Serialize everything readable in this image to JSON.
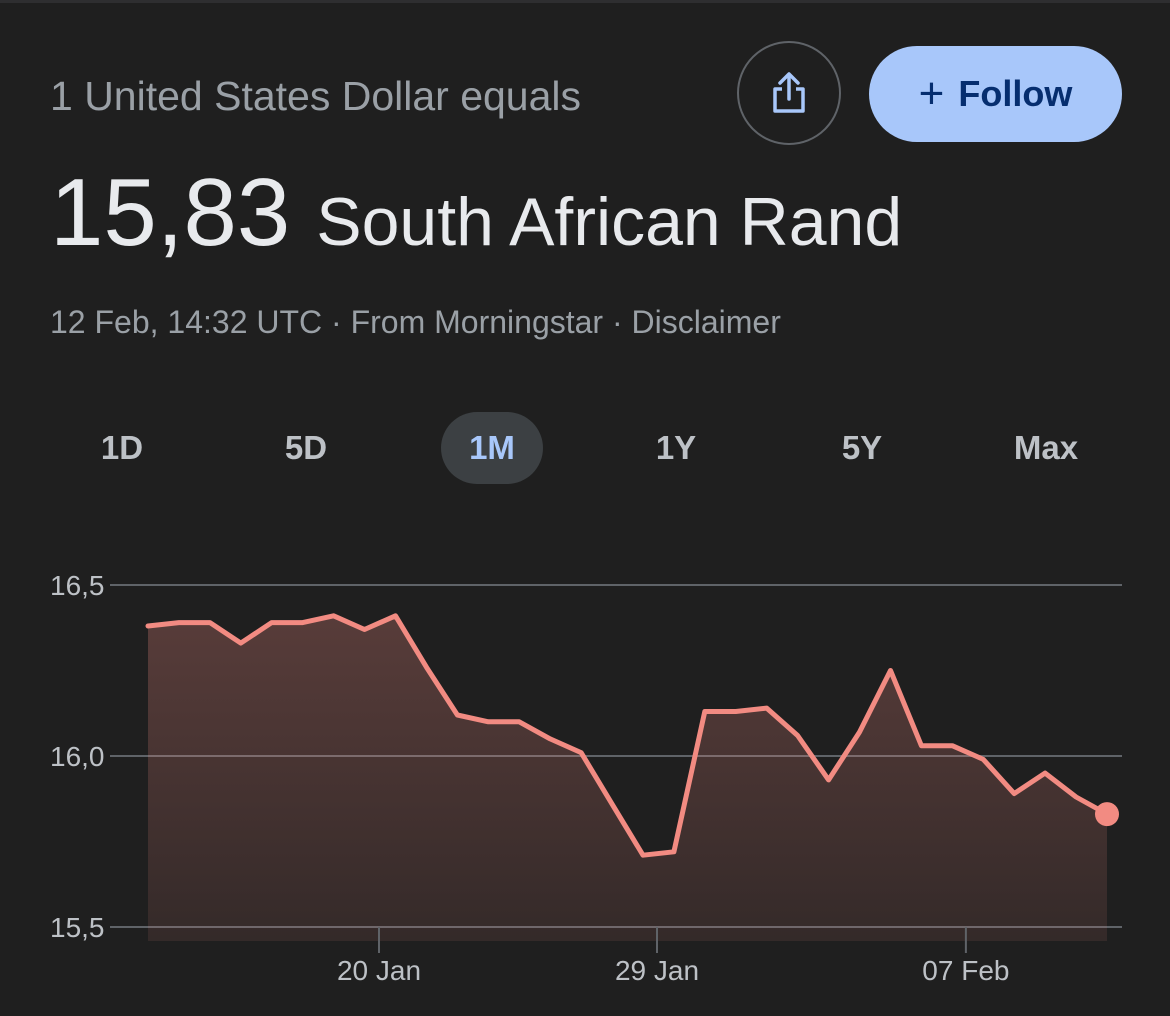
{
  "header": {
    "label": "1 United States Dollar equals",
    "share_icon": "share-icon",
    "follow_label": "Follow",
    "follow_icon": "plus-icon"
  },
  "rate": {
    "value": "15,83",
    "currency": "South African Rand"
  },
  "meta": {
    "timestamp": "12 Feb, 14:32 UTC",
    "separator": "·",
    "source": "From Morningstar",
    "disclaimer": "Disclaimer"
  },
  "range_tabs": [
    {
      "label": "1D",
      "active": false
    },
    {
      "label": "5D",
      "active": false
    },
    {
      "label": "1M",
      "active": true
    },
    {
      "label": "1Y",
      "active": false
    },
    {
      "label": "5Y",
      "active": false
    },
    {
      "label": "Max",
      "active": false
    }
  ],
  "colors": {
    "line": "#f28b82",
    "accent": "#a8c7fa",
    "grid": "#5f6368"
  },
  "chart_data": {
    "type": "area",
    "title": "",
    "xlabel": "",
    "ylabel": "",
    "ylim": [
      15.5,
      16.5
    ],
    "y_ticks": [
      {
        "value": 16.5,
        "label": "16,5"
      },
      {
        "value": 16.0,
        "label": "16,0"
      },
      {
        "value": 15.5,
        "label": "15,5"
      }
    ],
    "x_ticks": [
      {
        "day": 20,
        "label": "20 Jan"
      },
      {
        "day": 29,
        "label": "29 Jan"
      },
      {
        "day": 39,
        "label": "07 Feb"
      }
    ],
    "x_range": [
      12.6,
      44.0
    ],
    "grid": true,
    "series": [
      {
        "x": [
          12.6,
          13.6,
          14.6,
          15.6,
          16.6,
          17.6,
          18.6,
          19.6,
          20.6,
          21.6,
          22.6,
          23.6,
          24.6,
          25.6,
          26.6,
          27.6,
          28.6,
          29.6,
          30.6,
          31.6,
          32.6,
          33.6,
          34.6,
          35.6,
          36.6,
          37.6,
          38.6,
          39.6,
          40.6,
          41.6,
          42.6,
          43.6
        ],
        "values": [
          16.38,
          16.39,
          16.39,
          16.33,
          16.39,
          16.39,
          16.41,
          16.37,
          16.41,
          16.26,
          16.12,
          16.1,
          16.1,
          16.05,
          16.01,
          15.86,
          15.71,
          15.72,
          16.13,
          16.13,
          16.14,
          16.06,
          15.93,
          16.07,
          16.25,
          16.03,
          16.03,
          15.99,
          15.89,
          15.95,
          15.88,
          15.83
        ]
      }
    ]
  }
}
